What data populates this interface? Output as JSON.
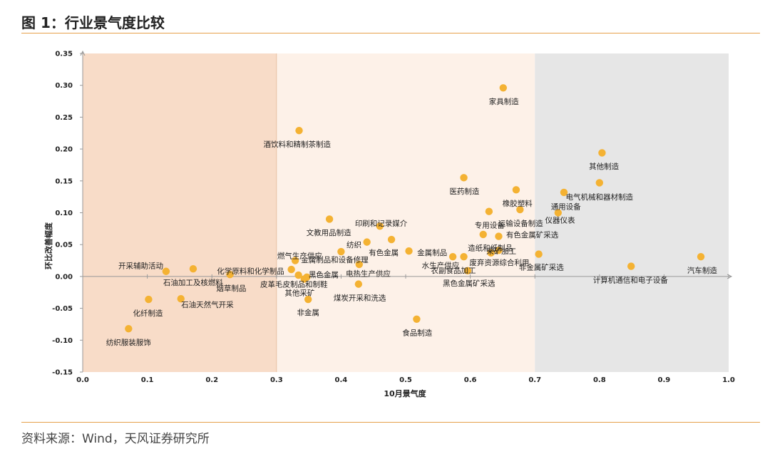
{
  "figure": {
    "title": "图 1：行业景气度比较",
    "source": "资料来源：Wind，天风证券研究所"
  },
  "chart_data": {
    "type": "scatter",
    "xlabel": "10月景气度",
    "ylabel": "环比改善幅度",
    "xlim": [
      0.0,
      1.0
    ],
    "ylim": [
      -0.15,
      0.35
    ],
    "xticks": [
      0.0,
      0.1,
      0.2,
      0.3,
      0.4,
      0.5,
      0.6,
      0.7,
      0.8,
      0.9,
      1.0
    ],
    "yticks": [
      -0.15,
      -0.1,
      -0.05,
      0.0,
      0.05,
      0.1,
      0.15,
      0.2,
      0.25,
      0.3,
      0.35
    ],
    "xtick_labels": [
      "0.0",
      "0.1",
      "0.2",
      "0.3",
      "0.4",
      "0.5",
      "0.6",
      "0.7",
      "0.8",
      "0.9",
      "1.0"
    ],
    "ytick_labels": [
      "-0.15",
      "-0.10",
      "-0.05",
      "0.00",
      "0.05",
      "0.10",
      "0.15",
      "0.20",
      "0.25",
      "0.30",
      "0.35"
    ],
    "regions": [
      {
        "x": [
          0.0,
          0.3
        ],
        "color": "#f8dcc8"
      },
      {
        "x": [
          0.3,
          0.7
        ],
        "color": "#fdf1e8"
      },
      {
        "x": [
          0.7,
          1.0
        ],
        "color": "#e6e6e6"
      }
    ],
    "point_color": "#f4b233",
    "points": [
      {
        "label": "家具制造",
        "x": 0.651,
        "y": 0.296,
        "lx": 0.652,
        "ly": 0.275
      },
      {
        "label": "酒饮料和精制茶制造",
        "x": 0.335,
        "y": 0.229,
        "lx": 0.332,
        "ly": 0.208
      },
      {
        "label": "其他制造",
        "x": 0.804,
        "y": 0.194,
        "lx": 0.807,
        "ly": 0.173
      },
      {
        "label": "医药制造",
        "x": 0.59,
        "y": 0.155,
        "lx": 0.591,
        "ly": 0.134
      },
      {
        "label": "电气机械和器材制造",
        "x": 0.8,
        "y": 0.147,
        "lx": 0.8,
        "ly": 0.125
      },
      {
        "label": "橡胶塑料",
        "x": 0.671,
        "y": 0.136,
        "lx": 0.673,
        "ly": 0.115
      },
      {
        "label": "通用设备",
        "x": 0.745,
        "y": 0.132,
        "lx": 0.748,
        "ly": 0.11
      },
      {
        "label": "运输设备制造",
        "x": 0.677,
        "y": 0.105,
        "lx": 0.678,
        "ly": 0.084
      },
      {
        "label": "专用设备",
        "x": 0.629,
        "y": 0.102,
        "lx": 0.63,
        "ly": 0.081
      },
      {
        "label": "仪器仪表",
        "x": 0.736,
        "y": 0.1,
        "lx": 0.739,
        "ly": 0.089
      },
      {
        "label": "文教用品制造",
        "x": 0.382,
        "y": 0.09,
        "lx": 0.381,
        "ly": 0.069
      },
      {
        "label": "印刷和记录媒介",
        "x": 0.46,
        "y": 0.079,
        "lx": 0.462,
        "ly": 0.084
      },
      {
        "label": "有色金属矿采选",
        "x": 0.644,
        "y": 0.063,
        "lx": 0.696,
        "ly": 0.066
      },
      {
        "label": "纺织",
        "x": 0.44,
        "y": 0.054,
        "lx": 0.42,
        "ly": 0.05
      },
      {
        "label": "有色金属",
        "x": 0.478,
        "y": 0.058,
        "lx": 0.466,
        "ly": 0.038
      },
      {
        "label": "造纸和纸制品",
        "x": 0.62,
        "y": 0.066,
        "lx": 0.631,
        "ly": 0.045
      },
      {
        "label": "金属制品",
        "x": 0.505,
        "y": 0.04,
        "lx": 0.541,
        "ly": 0.038
      },
      {
        "label": "燃气生产供应",
        "x": 0.329,
        "y": 0.025,
        "lx": 0.336,
        "ly": 0.033
      },
      {
        "label": "金属制品和设备修理",
        "x": 0.4,
        "y": 0.039,
        "lx": 0.39,
        "ly": 0.027
      },
      {
        "label": "采矿加工",
        "x": 0.644,
        "y": 0.041,
        "lx": 0.648,
        "ly": 0.04
      },
      {
        "label": "废弃资源综合利用",
        "x": 0.632,
        "y": 0.037,
        "lx": 0.645,
        "ly": 0.022
      },
      {
        "label": "水生产供应",
        "x": 0.573,
        "y": 0.031,
        "lx": 0.554,
        "ly": 0.018
      },
      {
        "label": "农副食品加工",
        "x": 0.59,
        "y": 0.031,
        "lx": 0.574,
        "ly": 0.01
      },
      {
        "label": "非金属矿采选",
        "x": 0.706,
        "y": 0.035,
        "lx": 0.71,
        "ly": 0.015
      },
      {
        "label": "汽车制造",
        "x": 0.957,
        "y": 0.031,
        "lx": 0.959,
        "ly": 0.01
      },
      {
        "label": "电热生产供应",
        "x": 0.428,
        "y": 0.019,
        "lx": 0.442,
        "ly": 0.005
      },
      {
        "label": "开采辅助活动",
        "x": 0.129,
        "y": 0.008,
        "lx": 0.09,
        "ly": 0.017
      },
      {
        "label": "化学原料和化学制品",
        "x": 0.323,
        "y": 0.011,
        "lx": 0.26,
        "ly": 0.009
      },
      {
        "label": "黑色金属",
        "x": 0.334,
        "y": 0.002,
        "lx": 0.373,
        "ly": 0.003
      },
      {
        "label": "黑色金属矿采选",
        "x": 0.596,
        "y": 0.009,
        "lx": 0.598,
        "ly": -0.01
      },
      {
        "label": "计算机通信和电子设备",
        "x": 0.849,
        "y": 0.016,
        "lx": 0.848,
        "ly": -0.005
      },
      {
        "label": "石油加工及核燃料",
        "x": 0.171,
        "y": 0.012,
        "lx": 0.171,
        "ly": -0.009
      },
      {
        "label": "烟草制品",
        "x": 0.228,
        "y": 0.003,
        "lx": 0.23,
        "ly": -0.018
      },
      {
        "label": "皮革毛皮制品和制鞋",
        "x": 0.347,
        "y": -0.001,
        "lx": 0.327,
        "ly": -0.012
      },
      {
        "label": "其他采矿",
        "x": 0.343,
        "y": -0.004,
        "lx": 0.336,
        "ly": -0.025
      },
      {
        "label": "煤炭开采和洗选",
        "x": 0.427,
        "y": -0.012,
        "lx": 0.429,
        "ly": -0.033
      },
      {
        "label": "石油天然气开采",
        "x": 0.152,
        "y": -0.035,
        "lx": 0.193,
        "ly": -0.044
      },
      {
        "label": "非金属",
        "x": 0.349,
        "y": -0.036,
        "lx": 0.349,
        "ly": -0.056
      },
      {
        "label": "化纤制造",
        "x": 0.102,
        "y": -0.036,
        "lx": 0.101,
        "ly": -0.057
      },
      {
        "label": "食品制造",
        "x": 0.517,
        "y": -0.067,
        "lx": 0.518,
        "ly": -0.088
      },
      {
        "label": "纺织服装服饰",
        "x": 0.071,
        "y": -0.082,
        "lx": 0.071,
        "ly": -0.103
      }
    ]
  }
}
